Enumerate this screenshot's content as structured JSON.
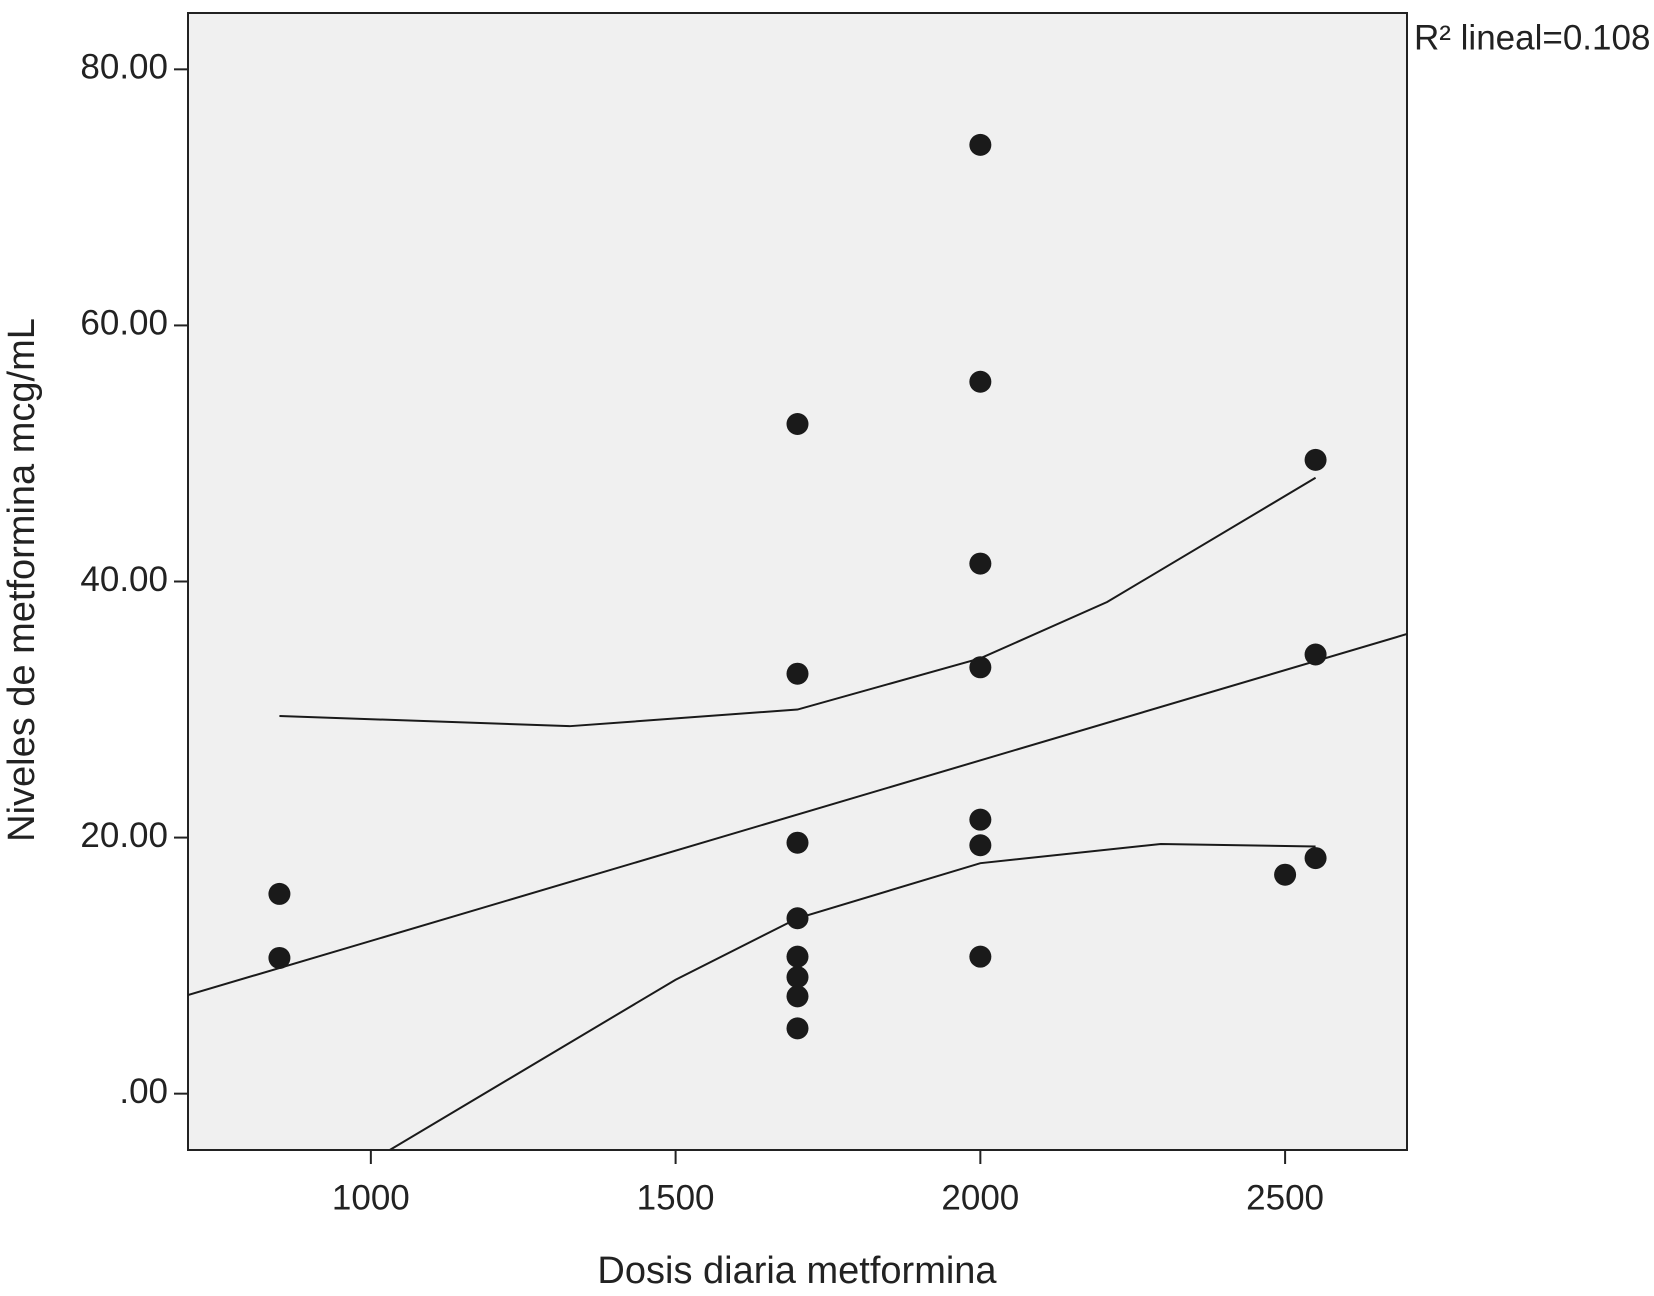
{
  "chart_data": {
    "type": "scatter",
    "xlabel": "Dosis diaria metformina",
    "ylabel": "Niveles de metformina mcg/mL",
    "annotation": "R² lineal=0.108",
    "xlim": [
      700,
      2700
    ],
    "ylim": [
      -4.4,
      84.4
    ],
    "xticks": [
      1000,
      1500,
      2000,
      2500
    ],
    "yticks": [
      {
        "value": 0,
        "label": ".00"
      },
      {
        "value": 20,
        "label": "20.00"
      },
      {
        "value": 40,
        "label": "40.00"
      },
      {
        "value": 60,
        "label": "60.00"
      },
      {
        "value": 80,
        "label": "80.00"
      }
    ],
    "color": "#1a1a1a",
    "points": {
      "x": [
        850,
        850,
        1700,
        1700,
        1700,
        1700,
        1700,
        1700,
        1700,
        1700,
        2000,
        2000,
        2000,
        2000,
        2000,
        2000,
        2000,
        2550,
        2550,
        2550,
        2500
      ],
      "y": [
        15.6,
        10.6,
        52.3,
        32.8,
        19.6,
        13.7,
        10.7,
        9.1,
        7.6,
        5.1,
        74.1,
        55.6,
        41.4,
        33.3,
        21.4,
        19.4,
        10.7,
        49.5,
        34.3,
        18.4,
        17.1
      ]
    },
    "fit_line": {
      "x": [
        700,
        2700
      ],
      "y": [
        7.7,
        35.9
      ]
    },
    "ci_upper": {
      "x": [
        850,
        1326,
        1700,
        2000,
        2208,
        2550
      ],
      "y": [
        29.5,
        28.7,
        30.0,
        34.0,
        38.4,
        48.1
      ]
    },
    "ci_lower": {
      "x": [
        1031,
        1500,
        1700,
        2000,
        2296,
        2550
      ],
      "y": [
        -4.4,
        8.9,
        13.7,
        18.0,
        19.5,
        19.3
      ]
    }
  }
}
